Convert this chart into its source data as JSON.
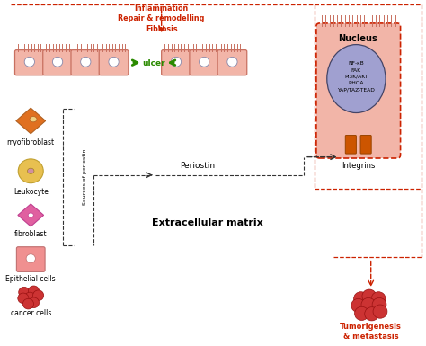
{
  "bg_color": "#ffffff",
  "cell_color": "#f2b5a8",
  "cell_border_color": "#c87060",
  "inflammation_text": "Inflammation\nRepair & remodelling\nFibrosis",
  "inflammation_color": "#cc2200",
  "ulcer_text": "ulcer",
  "ulcer_color": "#2a8a00",
  "nucleus_box_color": "#f2b5a8",
  "nucleus_box_border": "#cc2200",
  "nucleus_circle_color": "#a0a0d0",
  "nucleus_text": "NF-κB\nFAK\nPI3K/AKT\nRHOA\nYAP/TAZ-TEAD",
  "nucleus_label": "Nucleus",
  "integrin_color": "#cc5500",
  "integrin_label": "Integrins",
  "periostin_label": "Periostin",
  "sources_label": "Sources of periostin",
  "ecm_label": "Extracellular matrix",
  "tumor_label": "Tumorigenesis\n& metastasis",
  "tumor_color": "#cc3333",
  "myofibroblast_color": "#e07020",
  "leukocyte_color": "#e8c050",
  "leukocyte_nuc_color": "#d090a0",
  "fibroblast_color": "#e060a0",
  "epithelial_color": "#f09090",
  "cancer_color": "#cc3333",
  "arrow_red": "#cc2200",
  "arrow_black": "#333333",
  "arrow_green": "#2a8a00",
  "dashed_black": "#333333",
  "dashed_red": "#cc2200"
}
